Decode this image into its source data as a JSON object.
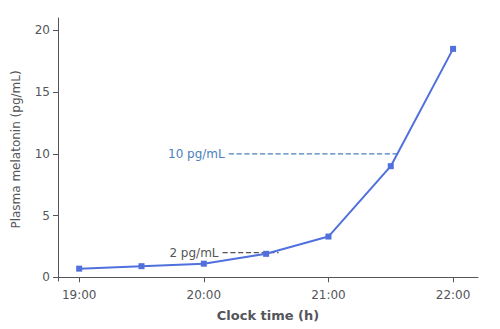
{
  "chart_data": {
    "type": "line",
    "x": [
      19.0,
      19.5,
      20.0,
      20.5,
      21.0,
      21.5,
      22.0
    ],
    "values": [
      0.7,
      0.9,
      1.1,
      1.9,
      3.3,
      9.0,
      18.5
    ],
    "marker": "square",
    "xlabel": "Clock time (h)",
    "ylabel": "Plasma melatonin (pg/mL)",
    "xlim": [
      18.83,
      22.2
    ],
    "ylim": [
      -0.3,
      21
    ],
    "xticks": [
      {
        "value": 19.0,
        "label": "19:00"
      },
      {
        "value": 20.0,
        "label": "20:00"
      },
      {
        "value": 21.0,
        "label": "21:00"
      },
      {
        "value": 22.0,
        "label": "22:00"
      }
    ],
    "yticks": [
      0,
      5,
      10,
      15,
      20
    ],
    "grid": false,
    "annotations": [
      {
        "text": "10 pg/mL",
        "y": 10,
        "x_start": 20.2,
        "x_end": 21.55,
        "color": "#4a7fc0",
        "line_style": "dashed"
      },
      {
        "text": "2 pg/mL",
        "y": 2,
        "x_start": 20.15,
        "x_end": 20.6,
        "color": "#555555",
        "line_style": "dashed"
      }
    ]
  }
}
